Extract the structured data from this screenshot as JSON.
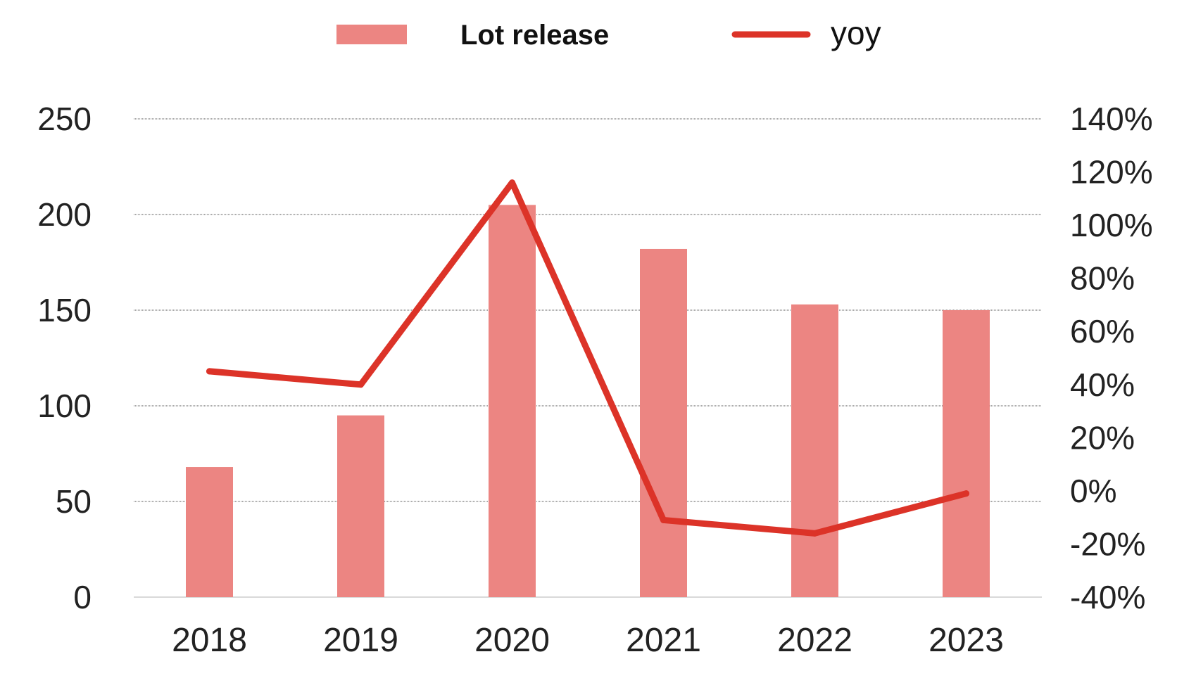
{
  "chart_data": {
    "type": "bar",
    "categories": [
      "2018",
      "2019",
      "2020",
      "2021",
      "2022",
      "2023"
    ],
    "series": [
      {
        "name": "Lot release",
        "type": "bar",
        "axis": "left",
        "color": "#ec8582",
        "values": [
          68,
          95,
          205,
          182,
          153,
          150
        ]
      },
      {
        "name": "yoy",
        "type": "line",
        "axis": "right",
        "color": "#dc3328",
        "values": [
          45,
          40,
          116,
          -11,
          -16,
          -1
        ]
      }
    ],
    "yleft": {
      "ylim": [
        0,
        250
      ],
      "ticks": [
        "0",
        "50",
        "100",
        "150",
        "200",
        "250"
      ]
    },
    "yright": {
      "ylim": [
        -40,
        140
      ],
      "ticks": [
        "-40%",
        "-20%",
        "0%",
        "20%",
        "40%",
        "60%",
        "80%",
        "100%",
        "120%",
        "140%"
      ]
    },
    "grid": true,
    "legend": "top-center",
    "title": "",
    "xlabel": "",
    "ylabel": ""
  }
}
